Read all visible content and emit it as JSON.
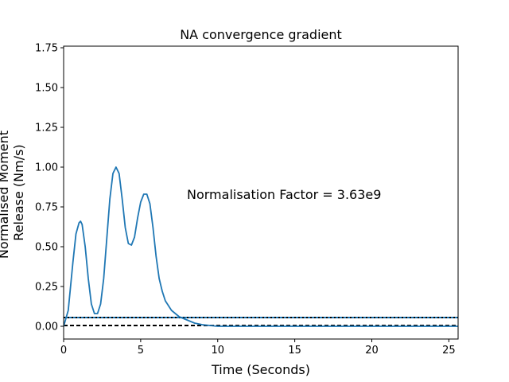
{
  "chart_data": {
    "type": "line",
    "title": "NA convergence gradient",
    "xlabel": "Time (Seconds)",
    "ylabel_lines": [
      "Normalised Moment",
      "Release (Nm/s)"
    ],
    "xlim": [
      0,
      25.6
    ],
    "ylim": [
      -0.08,
      1.76
    ],
    "xticks": [
      0,
      5,
      10,
      15,
      20,
      25
    ],
    "yticks": [
      0.0,
      0.25,
      0.5,
      0.75,
      1.0,
      1.25,
      1.5,
      1.75
    ],
    "xtick_labels": [
      "0",
      "5",
      "10",
      "15",
      "20",
      "25"
    ],
    "ytick_labels": [
      "0.00",
      "0.25",
      "0.50",
      "0.75",
      "1.00",
      "1.25",
      "1.50",
      "1.75"
    ],
    "annotation": "Normalisation Factor = 3.63e9",
    "grid": false,
    "series": [
      {
        "color": "#1f77b4",
        "x": [
          0.0,
          0.3,
          0.6,
          0.8,
          1.0,
          1.1,
          1.2,
          1.4,
          1.6,
          1.8,
          2.0,
          2.2,
          2.4,
          2.6,
          2.8,
          3.0,
          3.2,
          3.4,
          3.6,
          3.8,
          4.0,
          4.2,
          4.4,
          4.6,
          4.8,
          5.0,
          5.2,
          5.4,
          5.6,
          5.8,
          6.0,
          6.2,
          6.4,
          6.6,
          7.0,
          7.5,
          8.0,
          8.5,
          9.0,
          9.5,
          10.0,
          12.0,
          15.0,
          20.0,
          25.6
        ],
        "y": [
          0.0,
          0.1,
          0.4,
          0.58,
          0.65,
          0.66,
          0.64,
          0.5,
          0.3,
          0.14,
          0.08,
          0.08,
          0.14,
          0.3,
          0.55,
          0.8,
          0.96,
          1.0,
          0.96,
          0.8,
          0.62,
          0.52,
          0.51,
          0.56,
          0.68,
          0.78,
          0.83,
          0.83,
          0.77,
          0.62,
          0.44,
          0.3,
          0.22,
          0.16,
          0.1,
          0.06,
          0.04,
          0.02,
          0.01,
          0.005,
          0.0,
          0.0,
          0.0,
          0.0,
          0.0
        ]
      }
    ],
    "hlines": [
      {
        "y": 0.055,
        "color": "#1f77b4",
        "style": "solid"
      },
      {
        "y": 0.055,
        "color": "#000000",
        "style": "dotted"
      },
      {
        "y": 0.005,
        "color": "#000000",
        "style": "dashed"
      }
    ]
  }
}
